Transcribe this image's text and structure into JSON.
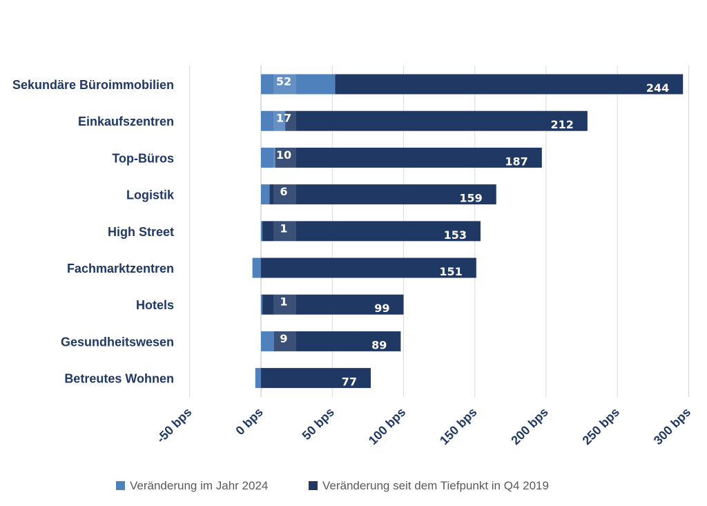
{
  "chart_data": {
    "type": "bar",
    "orientation": "horizontal",
    "stacked": true,
    "categories": [
      "Sekundäre Büroimmobilien",
      "Einkaufszentren",
      "Top-Büros",
      "Logistik",
      "High Street",
      "Fachmarktzentren",
      "Hotels",
      "Gesundheitswesen",
      "Betreutes Wohnen"
    ],
    "series": [
      {
        "name": "Veränderung im Jahr 2024",
        "color": "#4f81bd",
        "values": [
          52,
          17,
          10,
          6,
          1,
          -6,
          1,
          9,
          -4
        ],
        "labels": [
          "52",
          "17",
          "10",
          "6",
          "1",
          "",
          "1",
          "9",
          ""
        ]
      },
      {
        "name": "Veränderung seit dem Tiefpunkt in Q4 2019",
        "color": "#1f3864",
        "values": [
          244,
          212,
          187,
          159,
          153,
          151,
          99,
          89,
          77
        ],
        "labels": [
          "244",
          "212",
          "187",
          "159",
          "153",
          "151",
          "99",
          "89",
          "77"
        ]
      }
    ],
    "xlim": [
      -50,
      300
    ],
    "xticks": [
      "-50 bps",
      "0 bps",
      "50 bps",
      "100 bps",
      "150 bps",
      "200 bps",
      "250 bps",
      "300 bps"
    ],
    "xtick_values": [
      -50,
      0,
      50,
      100,
      150,
      200,
      250,
      300
    ],
    "grid": true,
    "legend_position": "bottom",
    "title": "",
    "xlabel": "",
    "ylabel": ""
  }
}
